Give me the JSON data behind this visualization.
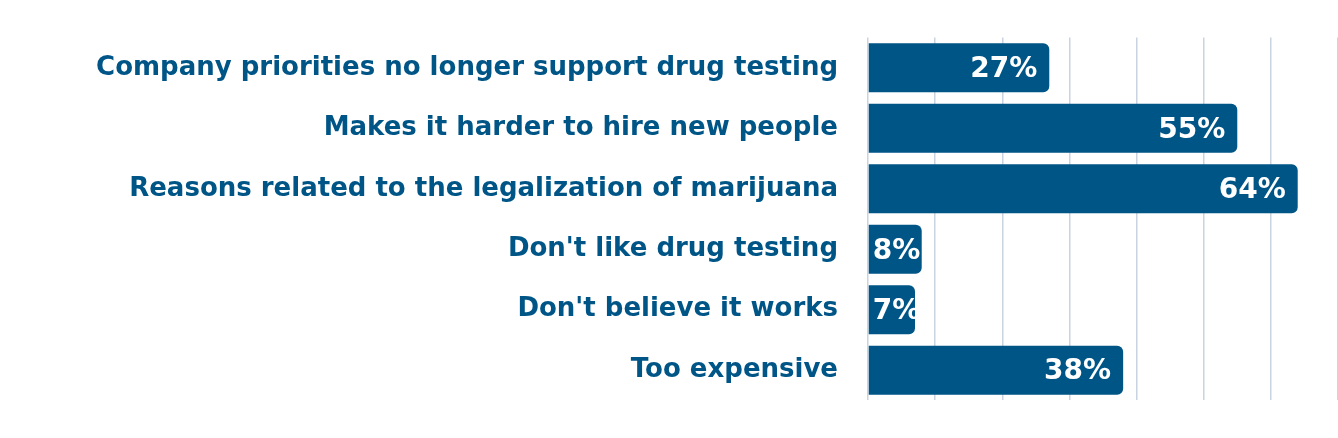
{
  "chart_data": {
    "type": "bar",
    "orientation": "horizontal",
    "categories": [
      "Company priorities no longer support drug testing",
      "Makes it harder to hire new people",
      "Reasons related to the legalization of marijuana",
      "Don't like drug testing",
      "Don't believe it works",
      "Too expensive"
    ],
    "values": [
      27,
      55,
      64,
      8,
      7,
      38
    ],
    "value_labels": [
      "27%",
      "55%",
      "64%",
      "8%",
      "7%",
      "38%"
    ],
    "color": "#005587",
    "xlim": [
      0,
      70
    ],
    "xticks": [
      {
        "value": 0,
        "label": null
      },
      {
        "value": 10,
        "label": null
      },
      {
        "value": 20,
        "label": null
      },
      {
        "value": 30,
        "label": null
      },
      {
        "value": 40,
        "label": null
      },
      {
        "value": 50,
        "label": null
      },
      {
        "value": 60,
        "label": null
      },
      {
        "value": 70,
        "label": null
      }
    ],
    "grid": "x",
    "tick_labels": "y",
    "legend": false
  }
}
